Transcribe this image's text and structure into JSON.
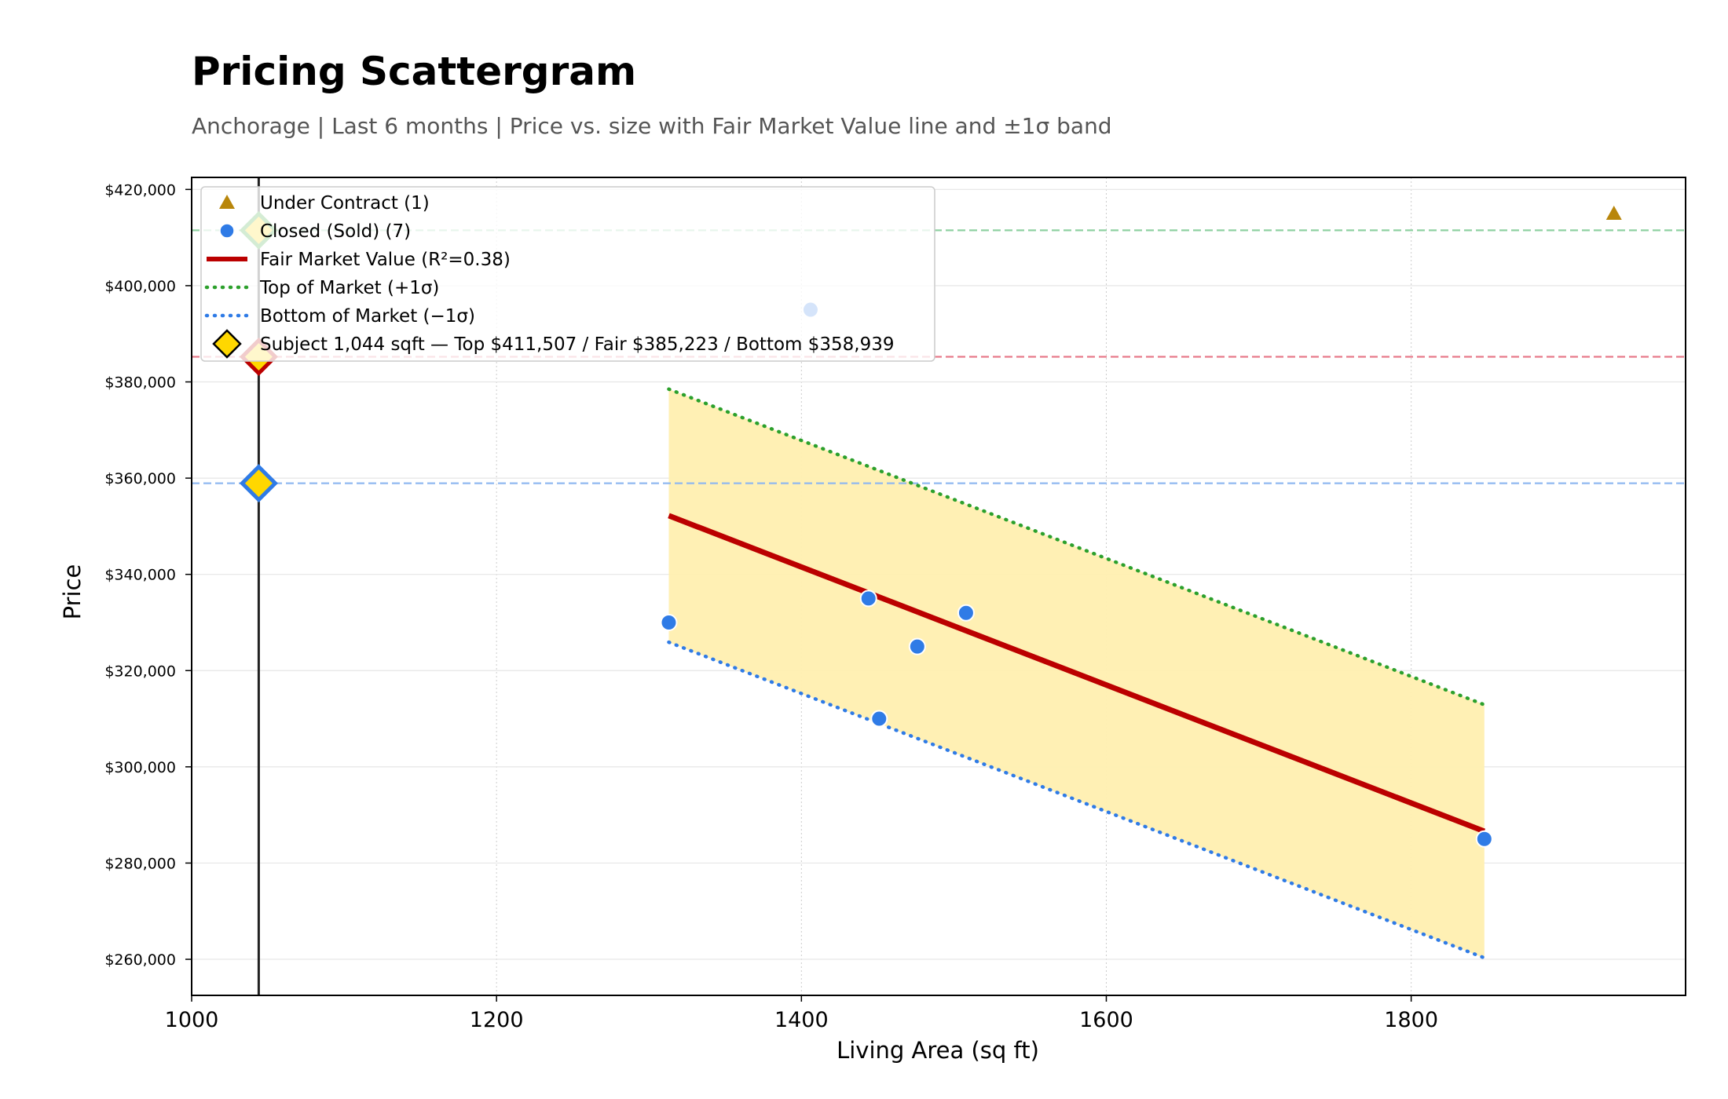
{
  "chart_data": {
    "type": "scatter",
    "title": "Pricing Scattergram",
    "subtitle": "Anchorage  |  Last 6 months  |  Price vs. size with Fair Market Value line and ±1σ band",
    "xlabel": "Living Area (sq ft)",
    "ylabel": "Price",
    "xlim": [
      1000,
      1980
    ],
    "ylim": [
      252500,
      422500
    ],
    "x_ticks": [
      1000,
      1200,
      1400,
      1600,
      1800
    ],
    "x_tick_labels": [
      "1000",
      "1200",
      "1400",
      "1600",
      "1800"
    ],
    "y_ticks": [
      260000,
      280000,
      300000,
      320000,
      340000,
      360000,
      380000,
      400000,
      420000
    ],
    "y_tick_labels": [
      "$260,000",
      "$280,000",
      "$300,000",
      "$320,000",
      "$340,000",
      "$360,000",
      "$380,000",
      "$400,000",
      "$420,000"
    ],
    "grid": true,
    "legend_position": "top-left",
    "series": [
      {
        "name": "Under Contract (1)",
        "kind": "scatter",
        "marker": "triangle",
        "color": "#B8860B",
        "points": [
          {
            "x": 1933,
            "y": 415000
          }
        ]
      },
      {
        "name": "Closed (Sold) (7)",
        "kind": "scatter",
        "marker": "circle",
        "color": "#2F7BE6",
        "points": [
          {
            "x": 1313,
            "y": 330000
          },
          {
            "x": 1406,
            "y": 395000
          },
          {
            "x": 1444,
            "y": 335000
          },
          {
            "x": 1451,
            "y": 310000
          },
          {
            "x": 1476,
            "y": 325000
          },
          {
            "x": 1508,
            "y": 332000
          },
          {
            "x": 1848,
            "y": 285000
          }
        ]
      },
      {
        "name": "Fair Market Value (R²=0.38)",
        "kind": "line",
        "style": "solid",
        "color": "#BB0000",
        "points": [
          {
            "x": 1313,
            "y": 352200
          },
          {
            "x": 1848,
            "y": 286600
          }
        ]
      },
      {
        "name": "Top of Market (+1σ)",
        "kind": "line",
        "style": "dotted",
        "color": "#2CA02C",
        "points": [
          {
            "x": 1313,
            "y": 378500
          },
          {
            "x": 1848,
            "y": 312900
          }
        ]
      },
      {
        "name": "Bottom of Market (−1σ)",
        "kind": "line",
        "style": "dotted",
        "color": "#2F7BE6",
        "points": [
          {
            "x": 1313,
            "y": 325900
          },
          {
            "x": 1848,
            "y": 260300
          }
        ]
      },
      {
        "name": "Subject 1,044 sqft  —  Top $411,507 / Fair $385,223 / Bottom $358,939",
        "kind": "subject",
        "marker": "diamond",
        "color": "#FFD700",
        "x": 1044,
        "top": 411507,
        "fair": 385223,
        "bottom": 358939
      }
    ],
    "band": {
      "color": "#FFEFB0",
      "series": [
        "Top of Market (+1σ)",
        "Bottom of Market (−1σ)"
      ]
    },
    "reference_lines": [
      {
        "axis": "y",
        "value": 411507,
        "color": "#8ED0A0",
        "style": "dashed"
      },
      {
        "axis": "y",
        "value": 385223,
        "color": "#E87A8A",
        "style": "dashed"
      },
      {
        "axis": "y",
        "value": 358939,
        "color": "#8FB8F0",
        "style": "dashed"
      },
      {
        "axis": "x",
        "value": 1044,
        "color": "#222222",
        "style": "solid"
      }
    ],
    "subject_marker_colors": {
      "top_edge": "#2CA02C",
      "fair_edge": "#BB0000",
      "bottom_edge": "#2F7BE6",
      "legend_edge": "#000000"
    }
  }
}
